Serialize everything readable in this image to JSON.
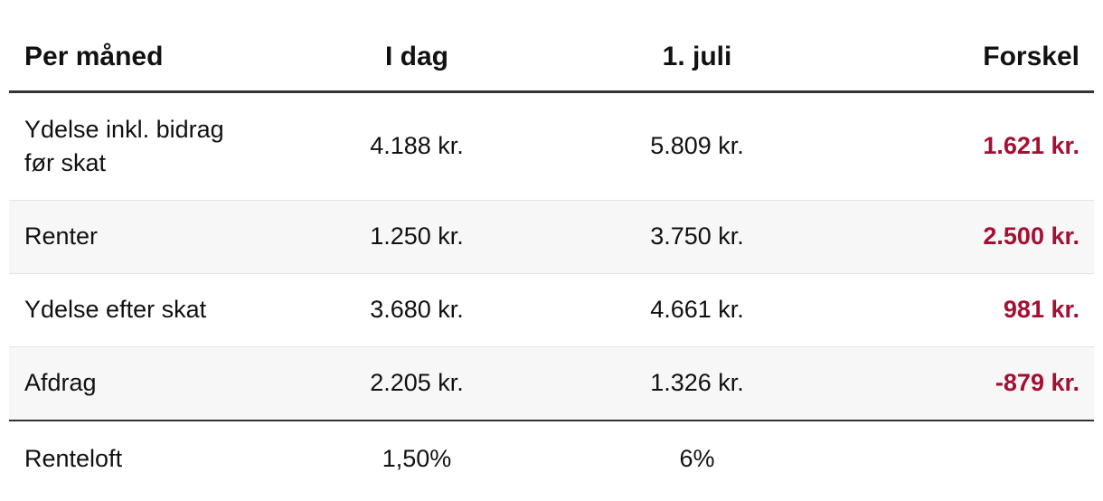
{
  "table": {
    "header": [
      "Per måned",
      "I dag",
      "1. juli",
      "Forskel"
    ],
    "rows": [
      [
        "Ydelse inkl. bidrag før skat",
        "4.188 kr.",
        "5.809 kr.",
        "1.621 kr."
      ],
      [
        "Renter",
        "1.250 kr.",
        "3.750 kr.",
        "2.500 kr."
      ],
      [
        "Ydelse efter skat",
        "3.680 kr.",
        "4.661 kr.",
        "981 kr."
      ],
      [
        "Afdrag",
        "2.205 kr.",
        "1.326 kr.",
        "-879 kr."
      ],
      [
        "Renteloft",
        "1,50%",
        "6%"
      ]
    ]
  }
}
